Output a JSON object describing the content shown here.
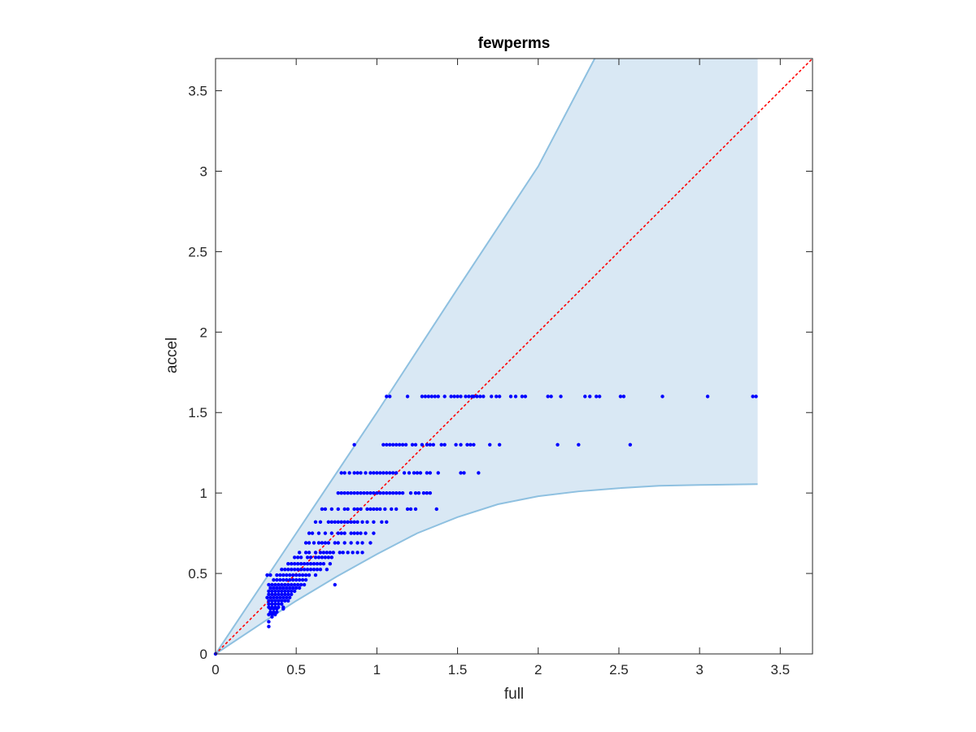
{
  "chart_data": {
    "type": "scatter",
    "title": "fewperms",
    "xlabel": "full",
    "ylabel": "accel",
    "xlim": [
      0,
      3.7
    ],
    "ylim": [
      0,
      3.7
    ],
    "xticks": [
      0,
      0.5,
      1,
      1.5,
      2,
      2.5,
      3,
      3.5
    ],
    "yticks": [
      0,
      0.5,
      1,
      1.5,
      2,
      2.5,
      3,
      3.5
    ],
    "tick_labels": [
      "0",
      "0.5",
      "1",
      "1.5",
      "2",
      "2.5",
      "3",
      "3.5"
    ],
    "grid": false,
    "colors": {
      "points": "#0000ff",
      "band_fill": "#d9e8f4",
      "band_edge": "#8ec0e0",
      "diagonal": "#ff0000",
      "axes": "#262626"
    },
    "band": {
      "upper": [
        [
          0,
          0
        ],
        [
          0.5,
          0.75
        ],
        [
          1,
          1.5
        ],
        [
          1.5,
          2.27
        ],
        [
          2,
          3.03
        ],
        [
          2.35,
          3.7
        ],
        [
          3.36,
          3.7
        ]
      ],
      "lower": [
        [
          0,
          0
        ],
        [
          0.3,
          0.2
        ],
        [
          0.5,
          0.33
        ],
        [
          0.75,
          0.48
        ],
        [
          1,
          0.62
        ],
        [
          1.25,
          0.75
        ],
        [
          1.5,
          0.85
        ],
        [
          1.75,
          0.93
        ],
        [
          2,
          0.98
        ],
        [
          2.25,
          1.01
        ],
        [
          2.5,
          1.03
        ],
        [
          2.75,
          1.045
        ],
        [
          3,
          1.05
        ],
        [
          3.36,
          1.055
        ]
      ]
    },
    "diagonal": [
      [
        0,
        0
      ],
      [
        3.7,
        3.7
      ]
    ],
    "series": [
      {
        "rows": [
          {
            "y": 1.6,
            "x": [
              1.06,
              1.08,
              1.19,
              1.28,
              1.3,
              1.32,
              1.34,
              1.36,
              1.38,
              1.42,
              1.46,
              1.48,
              1.5,
              1.52,
              1.55,
              1.57,
              1.59,
              1.6,
              1.62,
              1.64,
              1.66,
              1.71,
              1.74,
              1.76,
              1.83,
              1.86,
              1.9,
              1.92,
              2.06,
              2.08,
              2.14,
              2.29,
              2.32,
              2.36,
              2.38,
              2.51,
              2.53,
              2.77,
              3.05,
              3.33,
              3.35
            ]
          },
          {
            "y": 1.3,
            "x": [
              0.86,
              1.04,
              1.06,
              1.08,
              1.1,
              1.12,
              1.14,
              1.16,
              1.18,
              1.22,
              1.24,
              1.28,
              1.31,
              1.33,
              1.35,
              1.4,
              1.42,
              1.49,
              1.52,
              1.56,
              1.58,
              1.6,
              1.7,
              1.76,
              2.12,
              2.25,
              2.57
            ]
          },
          {
            "y": 1.125,
            "x": [
              0.78,
              0.8,
              0.83,
              0.86,
              0.88,
              0.9,
              0.93,
              0.96,
              0.98,
              1.0,
              1.02,
              1.04,
              1.06,
              1.08,
              1.1,
              1.12,
              1.17,
              1.2,
              1.23,
              1.25,
              1.27,
              1.31,
              1.33,
              1.38,
              1.52,
              1.54,
              1.63
            ]
          },
          {
            "y": 1.0,
            "x": [
              0.76,
              0.78,
              0.8,
              0.82,
              0.84,
              0.86,
              0.88,
              0.9,
              0.92,
              0.94,
              0.96,
              0.98,
              1.0,
              1.02,
              1.04,
              1.06,
              1.08,
              1.1,
              1.12,
              1.14,
              1.16,
              1.21,
              1.24,
              1.26,
              1.29,
              1.31,
              1.33
            ]
          },
          {
            "y": 0.9,
            "x": [
              0.66,
              0.68,
              0.72,
              0.76,
              0.8,
              0.82,
              0.86,
              0.88,
              0.9,
              0.94,
              0.96,
              0.98,
              1.0,
              1.02,
              1.05,
              1.09,
              1.12,
              1.19,
              1.21,
              1.24,
              1.37
            ]
          },
          {
            "y": 0.82,
            "x": [
              0.62,
              0.65,
              0.7,
              0.72,
              0.74,
              0.76,
              0.78,
              0.8,
              0.82,
              0.84,
              0.86,
              0.88,
              0.91,
              0.94,
              0.98,
              1.03,
              1.06
            ]
          },
          {
            "y": 0.75,
            "x": [
              0.58,
              0.6,
              0.64,
              0.68,
              0.72,
              0.76,
              0.78,
              0.8,
              0.84,
              0.86,
              0.88,
              0.9,
              0.93,
              0.98
            ]
          },
          {
            "y": 0.69,
            "x": [
              0.56,
              0.58,
              0.61,
              0.64,
              0.66,
              0.68,
              0.7,
              0.74,
              0.76,
              0.8,
              0.84,
              0.88,
              0.91,
              0.96
            ]
          },
          {
            "y": 0.63,
            "x": [
              0.52,
              0.56,
              0.58,
              0.62,
              0.65,
              0.67,
              0.69,
              0.71,
              0.73,
              0.77,
              0.79,
              0.82,
              0.85,
              0.88,
              0.91
            ]
          },
          {
            "y": 0.6,
            "x": [
              0.49,
              0.51,
              0.53,
              0.57,
              0.59,
              0.62,
              0.64,
              0.66,
              0.68,
              0.7,
              0.72
            ]
          },
          {
            "y": 0.56,
            "x": [
              0.45,
              0.47,
              0.49,
              0.51,
              0.53,
              0.55,
              0.57,
              0.59,
              0.61,
              0.63,
              0.65,
              0.67,
              0.71
            ]
          },
          {
            "y": 0.525,
            "x": [
              0.41,
              0.43,
              0.45,
              0.47,
              0.49,
              0.51,
              0.53,
              0.55,
              0.57,
              0.59,
              0.61,
              0.63,
              0.65,
              0.69
            ]
          },
          {
            "y": 0.49,
            "x": [
              0.32,
              0.34,
              0.38,
              0.4,
              0.42,
              0.44,
              0.46,
              0.48,
              0.5,
              0.52,
              0.54,
              0.56,
              0.58,
              0.62
            ]
          },
          {
            "y": 0.46,
            "x": [
              0.36,
              0.38,
              0.4,
              0.42,
              0.44,
              0.46,
              0.48,
              0.5,
              0.52,
              0.54,
              0.56
            ]
          },
          {
            "y": 0.43,
            "x": [
              0.33,
              0.35,
              0.37,
              0.39,
              0.41,
              0.43,
              0.45,
              0.47,
              0.49,
              0.51,
              0.53,
              0.55,
              0.74
            ]
          },
          {
            "y": 0.41,
            "x": [
              0.34,
              0.36,
              0.38,
              0.4,
              0.42,
              0.44,
              0.46,
              0.48,
              0.5,
              0.52
            ]
          },
          {
            "y": 0.39,
            "x": [
              0.33,
              0.35,
              0.37,
              0.39,
              0.41,
              0.43,
              0.45,
              0.47,
              0.49
            ]
          },
          {
            "y": 0.37,
            "x": [
              0.33,
              0.35,
              0.37,
              0.39,
              0.41,
              0.43,
              0.45,
              0.47
            ]
          },
          {
            "y": 0.35,
            "x": [
              0.32,
              0.34,
              0.36,
              0.38,
              0.4,
              0.42,
              0.44,
              0.46
            ]
          },
          {
            "y": 0.33,
            "x": [
              0.33,
              0.35,
              0.37,
              0.39,
              0.41,
              0.43,
              0.45
            ]
          },
          {
            "y": 0.31,
            "x": [
              0.33,
              0.35,
              0.37,
              0.39,
              0.41
            ]
          },
          {
            "y": 0.29,
            "x": [
              0.33,
              0.35,
              0.37,
              0.39,
              0.42
            ]
          },
          {
            "y": 0.28,
            "x": [
              0.34,
              0.36,
              0.38,
              0.42
            ]
          },
          {
            "y": 0.26,
            "x": [
              0.34,
              0.36,
              0.38
            ]
          },
          {
            "y": 0.245,
            "x": [
              0.33,
              0.35,
              0.37
            ]
          },
          {
            "y": 0.23,
            "x": [
              0.35
            ]
          },
          {
            "y": 0.2,
            "x": [
              0.33
            ]
          },
          {
            "y": 0.17,
            "x": [
              0.33
            ]
          },
          {
            "y": 0.0,
            "x": [
              0.0
            ]
          }
        ]
      }
    ]
  }
}
